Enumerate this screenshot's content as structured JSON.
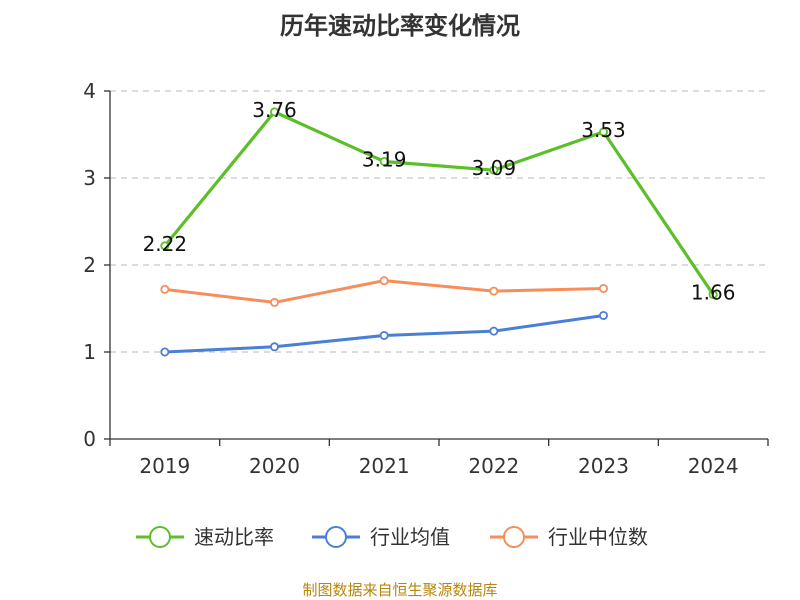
{
  "chart_data": {
    "type": "line",
    "title": "历年速动比率变化情况",
    "categories": [
      "2019",
      "2020",
      "2021",
      "2022",
      "2023",
      "2024"
    ],
    "yticks": [
      "0",
      "1",
      "2",
      "3",
      "4"
    ],
    "ylim": [
      0,
      4
    ],
    "grid": true,
    "legend_position": "bottom",
    "series": [
      {
        "name": "速动比率",
        "color": "#5cbf2a",
        "values": [
          2.22,
          3.76,
          3.19,
          3.09,
          3.53,
          1.66
        ],
        "labels": [
          "2.22",
          "3.76",
          "3.19",
          "3.09",
          "3.53",
          "1.66"
        ],
        "show_labels": true
      },
      {
        "name": "行业均值",
        "color": "#4a7fd6",
        "values": [
          1.0,
          1.06,
          1.19,
          1.24,
          1.42,
          null
        ],
        "show_labels": false
      },
      {
        "name": "行业中位数",
        "color": "#f58e5a",
        "values": [
          1.72,
          1.57,
          1.82,
          1.7,
          1.73,
          null
        ],
        "show_labels": false
      }
    ]
  },
  "footer": {
    "source": "制图数据来自恒生聚源数据库"
  }
}
